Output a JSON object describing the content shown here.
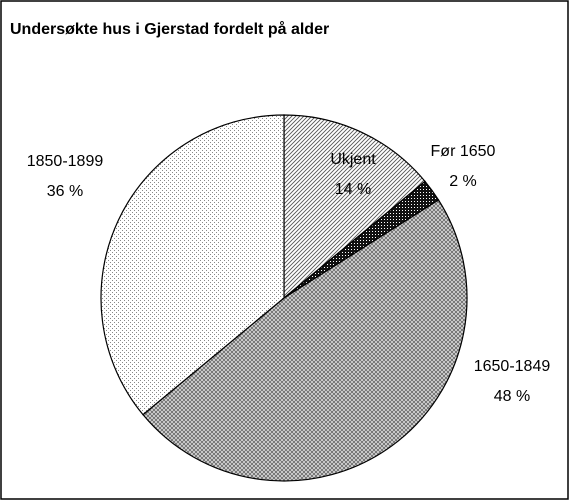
{
  "chart_data": {
    "type": "pie",
    "title": "Undersøkte hus i Gjerstad fordelt på alder",
    "categories": [
      "Ukjent",
      "Før 1650",
      "1650-1849",
      "1850-1899"
    ],
    "values": [
      14,
      2,
      48,
      36
    ],
    "value_labels": [
      "14 %",
      "2 %",
      "48 %",
      "36 %"
    ]
  }
}
